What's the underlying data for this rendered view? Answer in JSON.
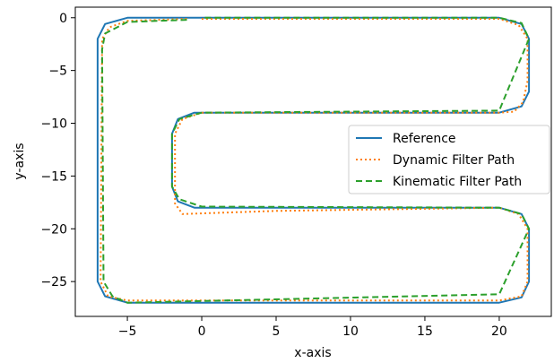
{
  "chart_data": {
    "type": "line",
    "title": "",
    "xlabel": "x-axis",
    "ylabel": "y-axis",
    "xlim": [
      -8.5,
      23.5
    ],
    "ylim": [
      -28.3,
      1.0
    ],
    "xticks": [
      -5,
      0,
      5,
      10,
      15,
      20
    ],
    "xtick_labels": [
      "−5",
      "0",
      "5",
      "10",
      "15",
      "20"
    ],
    "yticks": [
      0,
      -5,
      -10,
      -15,
      -20,
      -25
    ],
    "ytick_labels": [
      "0",
      "−5",
      "−10",
      "−15",
      "−20",
      "−25"
    ],
    "grid": false,
    "legend_position": "center-right",
    "series": [
      {
        "name": "Reference",
        "color": "#1f77b4",
        "style": "solid",
        "x": [
          0,
          -5,
          -6.5,
          -7,
          -7,
          -6.5,
          -5,
          20,
          21.5,
          22,
          22,
          21.5,
          20,
          -0.5,
          -1.6,
          -2,
          -2,
          -1.6,
          -0.5,
          20,
          21.5,
          22,
          22,
          21.5,
          20,
          0
        ],
        "y": [
          0,
          0,
          -0.6,
          -2,
          -25,
          -26.4,
          -27,
          -27,
          -26.5,
          -25,
          -20,
          -18.6,
          -18,
          -18,
          -17.4,
          -16,
          -11,
          -9.6,
          -9,
          -9,
          -8.4,
          -7,
          -2,
          -0.6,
          0,
          0
        ]
      },
      {
        "name": "Dynamic Filter Path",
        "color": "#ff7f0e",
        "style": "dotted",
        "x": [
          -1,
          -5,
          -6.2,
          -6.7,
          -6.8,
          -6.3,
          -5,
          20,
          21.5,
          21.9,
          21.9,
          21.3,
          20,
          5,
          -1.3,
          -1.8,
          -1.8,
          -1.3,
          0,
          20,
          21,
          21.6,
          21.9,
          21.9,
          21.3,
          20,
          0
        ],
        "y": [
          -0.1,
          -0.3,
          -0.9,
          -2,
          -25,
          -26.4,
          -26.8,
          -26.8,
          -26.4,
          -25,
          -20,
          -18.6,
          -18,
          -18.3,
          -18.6,
          -17.6,
          -11,
          -9.6,
          -9,
          -9,
          -8.9,
          -8,
          -6,
          -2,
          -0.7,
          -0.1,
          -0.1
        ]
      },
      {
        "name": "Kinematic Filter Path",
        "color": "#2ca02c",
        "style": "dashed",
        "x": [
          -1,
          -5,
          -6.5,
          -6.7,
          -6.6,
          -6,
          -5,
          20,
          22,
          21.5,
          20,
          0,
          -1.5,
          -2.0,
          -2.0,
          -1.5,
          0,
          20,
          22,
          21.5,
          20,
          0
        ],
        "y": [
          -0.2,
          -0.4,
          -1.5,
          -3,
          -25,
          -26.4,
          -27,
          -26.2,
          -20,
          -18.6,
          -18,
          -17.9,
          -17.2,
          -16,
          -11,
          -9.6,
          -9,
          -8.8,
          -2,
          -0.5,
          0,
          0
        ]
      }
    ]
  }
}
